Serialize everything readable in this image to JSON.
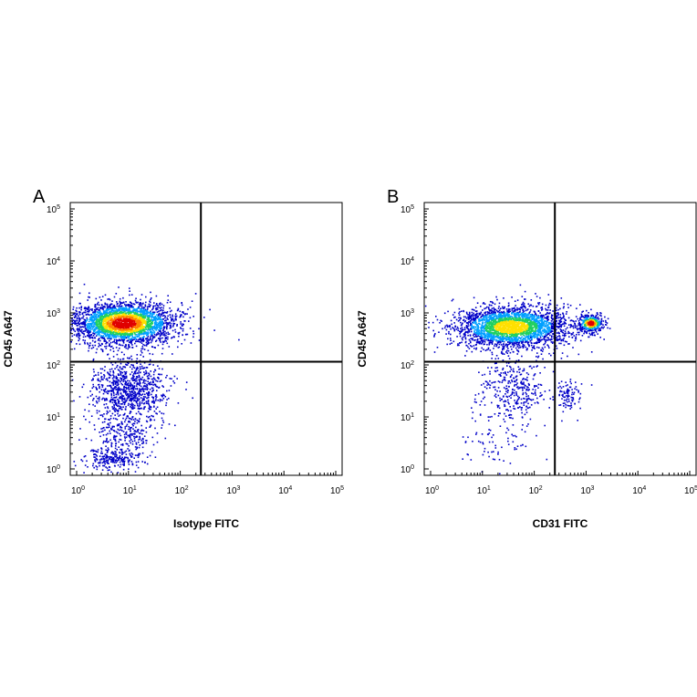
{
  "chart_data": [
    {
      "type": "scatter",
      "panel": "A",
      "xlabel": "Isotype FITC",
      "ylabel": "CD45 A647",
      "x_scale": "log",
      "y_scale": "log",
      "xlim": [
        1,
        100000
      ],
      "ylim": [
        1,
        100000
      ],
      "x_ticks": [
        "10",
        "10",
        "10",
        "10",
        "10",
        "10"
      ],
      "x_tick_exponents": [
        "0",
        "1",
        "2",
        "3",
        "4",
        "5"
      ],
      "y_ticks": [
        "10",
        "10",
        "10",
        "10",
        "10",
        "10"
      ],
      "y_tick_exponents": [
        "0",
        "1",
        "2",
        "3",
        "4",
        "5"
      ],
      "gate": {
        "x": 250,
        "y": 115
      },
      "colormap": [
        "#0000c8",
        "#00a0ff",
        "#20d060",
        "#ffe000",
        "#ff8000",
        "#e00000"
      ],
      "populations": [
        {
          "center": [
            8,
            650
          ],
          "spread_decades": [
            0.48,
            0.2
          ],
          "count": 3000,
          "peak_color": "#e00000"
        },
        {
          "center": [
            10,
            35
          ],
          "spread_decades": [
            0.35,
            0.3
          ],
          "count": 900,
          "peak_color": "#0000c8"
        },
        {
          "center": [
            5,
            1.6
          ],
          "spread_decades": [
            0.3,
            0.1
          ],
          "count": 220,
          "peak_color": "#0000c8"
        },
        {
          "center": [
            8,
            5
          ],
          "spread_decades": [
            0.32,
            0.22
          ],
          "count": 250,
          "peak_color": "#0000c8"
        }
      ]
    },
    {
      "type": "scatter",
      "panel": "B",
      "xlabel": "CD31 FITC",
      "ylabel": "CD45 A647",
      "x_scale": "log",
      "y_scale": "log",
      "xlim": [
        1,
        100000
      ],
      "ylim": [
        1,
        100000
      ],
      "x_ticks": [
        "10",
        "10",
        "10",
        "10",
        "10",
        "10"
      ],
      "x_tick_exponents": [
        "0",
        "1",
        "2",
        "3",
        "4",
        "5"
      ],
      "y_ticks": [
        "10",
        "10",
        "10",
        "10",
        "10",
        "10"
      ],
      "y_tick_exponents": [
        "0",
        "1",
        "2",
        "3",
        "4",
        "5"
      ],
      "gate": {
        "x": 250,
        "y": 115
      },
      "colormap": [
        "#0000c8",
        "#00a0ff",
        "#20d060",
        "#ffe000",
        "#ff8000",
        "#e00000"
      ],
      "populations": [
        {
          "center": [
            35,
            550
          ],
          "spread_decades": [
            0.55,
            0.2
          ],
          "count": 2800,
          "peak_color": "#ffe000"
        },
        {
          "center": [
            1200,
            650
          ],
          "spread_decades": [
            0.12,
            0.08
          ],
          "count": 380,
          "peak_color": "#e00000"
        },
        {
          "center": [
            40,
            40
          ],
          "spread_decades": [
            0.35,
            0.3
          ],
          "count": 350,
          "peak_color": "#0000c8"
        },
        {
          "center": [
            450,
            25
          ],
          "spread_decades": [
            0.12,
            0.15
          ],
          "count": 90,
          "peak_color": "#0000c8"
        },
        {
          "center": [
            20,
            4
          ],
          "spread_decades": [
            0.35,
            0.3
          ],
          "count": 90,
          "peak_color": "#0000c8"
        }
      ]
    }
  ]
}
